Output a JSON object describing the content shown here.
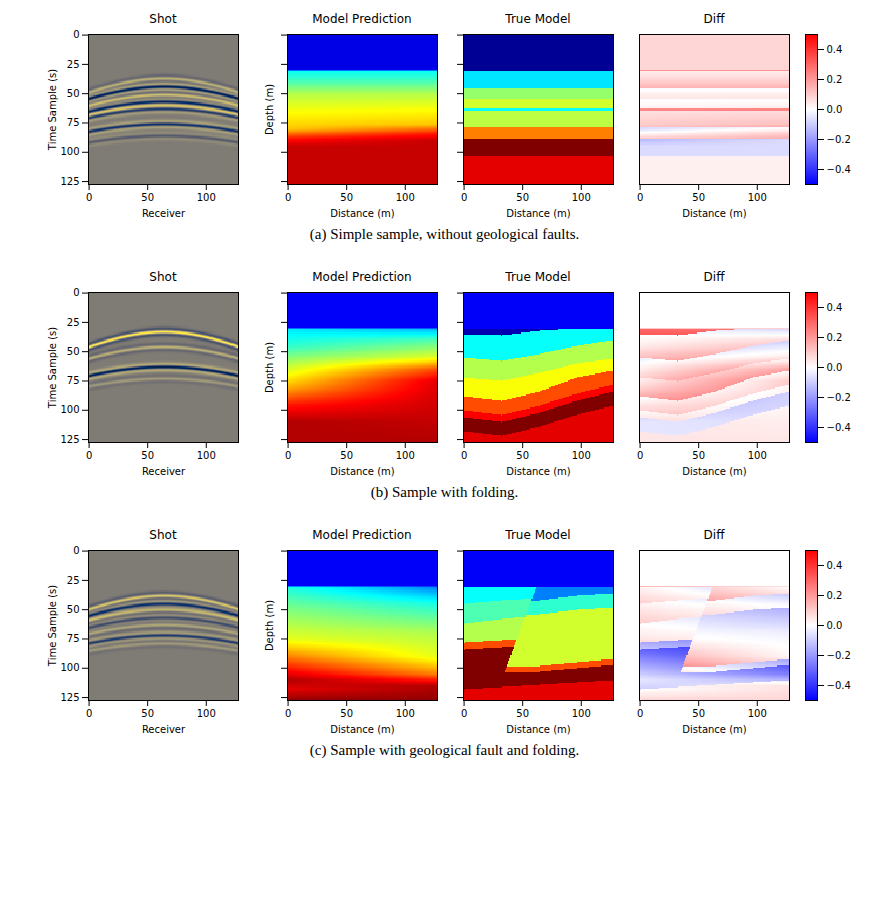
{
  "chart_data": [
    {
      "type": "image_grid",
      "caption": "(a) Simple sample, without geological faults.",
      "panels": [
        {
          "type": "shot",
          "title": "Shot",
          "xlabel": "Receiver",
          "ylabel": "Time Sample (s)",
          "xlim": [
            -0.5,
            127.5
          ],
          "ylim": [
            127.5,
            -0.5
          ],
          "xticks": [
            0,
            50,
            100
          ],
          "yticks": [
            0,
            25,
            50,
            75,
            100,
            125
          ],
          "tick_labels": true,
          "range": [
            -1,
            1
          ],
          "apex": 64,
          "moveout": 0.5,
          "events": [
            {
              "t0": 37,
              "amplitude": 0.5
            },
            {
              "t0": 44,
              "amplitude": -1
            },
            {
              "t0": 51,
              "amplitude": 0.6
            },
            {
              "t0": 57,
              "amplitude": -0.9
            },
            {
              "t0": 63,
              "amplitude": -0.7
            },
            {
              "t0": 76,
              "amplitude": -0.8
            },
            {
              "t0": 86,
              "amplitude": -0.35
            }
          ]
        },
        {
          "type": "model",
          "title": "Model Prediction",
          "xlabel": "Distance (m)",
          "ylabel": "Depth (m)",
          "xlim": [
            -0.5,
            127.5
          ],
          "ylim": [
            127.5,
            -0.5
          ],
          "xticks": [
            0,
            50,
            100
          ],
          "yticks": [
            0,
            25,
            50,
            75,
            100,
            125
          ],
          "tick_labels": "x",
          "range": [
            0,
            1
          ],
          "profiles": [
            {
              "x": 0,
              "depth": [
                0,
                29.5,
                30.5,
                40,
                50,
                65,
                80,
                88,
                95,
                127
              ],
              "value": [
                0.1,
                0.1,
                0.38,
                0.45,
                0.55,
                0.62,
                0.68,
                0.85,
                0.93,
                0.93
              ]
            },
            {
              "x": 127,
              "depth": [
                0,
                29.5,
                30.5,
                40,
                50,
                63,
                76,
                84,
                90,
                127
              ],
              "value": [
                0.1,
                0.1,
                0.38,
                0.45,
                0.55,
                0.62,
                0.68,
                0.85,
                0.93,
                0.93
              ]
            }
          ]
        },
        {
          "type": "model",
          "title": "True Model",
          "xlabel": "Distance (m)",
          "xlim": [
            -0.5,
            127.5
          ],
          "ylim": [
            127.5,
            -0.5
          ],
          "xticks": [
            0,
            50,
            100
          ],
          "yticks": [
            0,
            25,
            50,
            75,
            100,
            125
          ],
          "tick_labels": "x",
          "range": [
            0,
            1
          ],
          "blocks": [
            {
              "x": [
                0,
                127
              ],
              "interfaces": [
                [
                  30,
                  30
                ],
                [
                  45,
                  45
                ],
                [
                  54,
                  54
                ],
                [
                  62,
                  62
                ],
                [
                  64,
                  64
                ],
                [
                  78,
                  78
                ],
                [
                  88,
                  88
                ],
                [
                  103,
                  103
                ]
              ],
              "values": [
                0.02,
                0.35,
                0.52,
                0.58,
                0.38,
                0.56,
                0.75,
                1.0,
                0.9
              ]
            }
          ]
        },
        {
          "type": "diff",
          "title": "Diff",
          "xlabel": "Distance (m)",
          "xlim": [
            -0.5,
            127.5
          ],
          "ylim": [
            127.5,
            -0.5
          ],
          "xticks": [
            0,
            50,
            100
          ],
          "tick_labels": "x",
          "colorbar_range": [
            -0.5,
            0.5
          ],
          "colorbar_ticks": [
            -0.4,
            -0.2,
            {
              "value": 0,
              "label": "0.0"
            },
            0.2,
            0.4
          ]
        }
      ]
    },
    {
      "type": "image_grid",
      "caption": "(b) Sample with folding.",
      "panels": [
        {
          "type": "shot",
          "title": "Shot",
          "xlabel": "Receiver",
          "ylabel": "Time Sample (s)",
          "xlim": [
            -0.5,
            127.5
          ],
          "ylim": [
            127.5,
            -0.5
          ],
          "xticks": [
            0,
            50,
            100
          ],
          "yticks": [
            0,
            25,
            50,
            75,
            100,
            125
          ],
          "tick_labels": true,
          "range": [
            -1,
            1
          ],
          "apex": 64,
          "moveout": 0.5,
          "events": [
            {
              "t0": 33,
              "amplitude": 1
            },
            {
              "t0": 46,
              "amplitude": 0.5
            },
            {
              "t0": 63,
              "amplitude": -1
            },
            {
              "t0": 73,
              "amplitude": 0.3
            }
          ]
        },
        {
          "type": "model",
          "title": "Model Prediction",
          "xlabel": "Distance (m)",
          "ylabel": "Depth (m)",
          "xlim": [
            -0.5,
            127.5
          ],
          "ylim": [
            127.5,
            -0.5
          ],
          "xticks": [
            0,
            50,
            100
          ],
          "yticks": [
            0,
            25,
            50,
            75,
            100,
            125
          ],
          "tick_labels": "x",
          "range": [
            0,
            1
          ],
          "profiles": [
            {
              "x": 0,
              "depth": [
                0,
                29.5,
                30.5,
                45,
                60,
                80,
                95,
                110,
                127
              ],
              "value": [
                0.12,
                0.12,
                0.35,
                0.42,
                0.55,
                0.7,
                0.85,
                0.95,
                0.95
              ]
            },
            {
              "x": 127,
              "depth": [
                0,
                29.5,
                30.5,
                40,
                55,
                65,
                75,
                127
              ],
              "value": [
                0.12,
                0.12,
                0.3,
                0.45,
                0.6,
                0.8,
                0.9,
                0.95
              ]
            }
          ]
        },
        {
          "type": "model",
          "title": "True Model",
          "xlabel": "Distance (m)",
          "xlim": [
            -0.5,
            127.5
          ],
          "ylim": [
            127.5,
            -0.5
          ],
          "xticks": [
            0,
            50,
            100
          ],
          "yticks": [
            0,
            25,
            50,
            75,
            100,
            125
          ],
          "tick_labels": "x",
          "range": [
            0,
            1
          ],
          "blocks": [
            {
              "x": [
                0,
                32,
                64,
                96,
                127
              ],
              "interfaces": [
                [
                  30,
                  30,
                  30,
                  30,
                  30
                ],
                [
                  35,
                  36,
                  32,
                  30,
                  30
                ],
                [
                  55,
                  58,
                  52,
                  45,
                  40
                ],
                [
                  72,
                  75,
                  68,
                  60,
                  56
                ],
                [
                  88,
                  92,
                  84,
                  72,
                  66
                ],
                [
                  100,
                  104,
                  96,
                  86,
                  78
                ],
                [
                  106,
                  110,
                  102,
                  92,
                  84
                ],
                [
                  118,
                  122,
                  114,
                  104,
                  96
                ]
              ],
              "values": [
                0.12,
                0.05,
                0.38,
                0.55,
                0.62,
                0.8,
                0.88,
                1.0,
                0.9
              ]
            }
          ]
        },
        {
          "type": "diff",
          "title": "Diff",
          "xlabel": "Distance (m)",
          "xlim": [
            -0.5,
            127.5
          ],
          "ylim": [
            127.5,
            -0.5
          ],
          "xticks": [
            0,
            50,
            100
          ],
          "tick_labels": "x",
          "colorbar_range": [
            -0.5,
            0.5
          ],
          "colorbar_ticks": [
            -0.4,
            -0.2,
            {
              "value": 0,
              "label": "0.0"
            },
            0.2,
            0.4
          ]
        }
      ]
    },
    {
      "type": "image_grid",
      "caption": "(c) Sample with geological fault and folding.",
      "panels": [
        {
          "type": "shot",
          "title": "Shot",
          "xlabel": "Receiver",
          "ylabel": "Time Sample (s)",
          "xlim": [
            -0.5,
            127.5
          ],
          "ylim": [
            127.5,
            -0.5
          ],
          "xticks": [
            0,
            50,
            100
          ],
          "yticks": [
            0,
            25,
            50,
            75,
            100,
            125
          ],
          "tick_labels": true,
          "range": [
            -1,
            1
          ],
          "apex": 64,
          "moveout": 0.5,
          "events": [
            {
              "t0": 38,
              "amplitude": 0.7
            },
            {
              "t0": 45,
              "amplitude": -0.8
            },
            {
              "t0": 50,
              "amplitude": 0.5
            },
            {
              "t0": 57,
              "amplitude": -0.5
            },
            {
              "t0": 63,
              "amplitude": 0.4
            },
            {
              "t0": 72,
              "amplitude": -0.7
            },
            {
              "t0": 79,
              "amplitude": 0.3
            }
          ]
        },
        {
          "type": "model",
          "title": "Model Prediction",
          "xlabel": "Distance (m)",
          "ylabel": "Depth (m)",
          "xlim": [
            -0.5,
            127.5
          ],
          "ylim": [
            127.5,
            -0.5
          ],
          "xticks": [
            0,
            50,
            100
          ],
          "yticks": [
            0,
            25,
            50,
            75,
            100,
            125
          ],
          "tick_labels": "x",
          "range": [
            0,
            1
          ],
          "profiles": [
            {
              "x": 0,
              "depth": [
                0,
                29.5,
                30.5,
                50,
                75,
                95,
                110,
                118,
                127
              ],
              "value": [
                0.12,
                0.12,
                0.4,
                0.5,
                0.6,
                0.8,
                0.95,
                0.9,
                0.98
              ]
            },
            {
              "x": 127,
              "depth": [
                0,
                29.5,
                30.5,
                45,
                70,
                90,
                105,
                115,
                127
              ],
              "value": [
                0.12,
                0.12,
                0.25,
                0.4,
                0.55,
                0.6,
                0.75,
                0.95,
                0.98
              ]
            }
          ]
        },
        {
          "type": "model",
          "title": "True Model",
          "xlabel": "Distance (m)",
          "xlim": [
            -0.5,
            127.5
          ],
          "ylim": [
            127.5,
            -0.5
          ],
          "xticks": [
            0,
            50,
            100
          ],
          "yticks": [
            0,
            25,
            50,
            75,
            100,
            125
          ],
          "tick_labels": "x",
          "range": [
            0,
            1
          ],
          "fault": {
            "x": [
              62,
              30
            ],
            "depth": [
              30,
              115
            ]
          },
          "blocks": [
            {
              "side": "left",
              "x": [
                0,
                32,
                64,
                96,
                127
              ],
              "interfaces": [
                [
                  30,
                  30,
                  30,
                  30,
                  30
                ],
                [
                  45,
                  42,
                  40,
                  38,
                  36
                ],
                [
                  62,
                  58,
                  55,
                  52,
                  50
                ],
                [
                  78,
                  76,
                  74,
                  72,
                  70
                ],
                [
                  84,
                  82,
                  80,
                  78,
                  76
                ],
                [
                  118,
                  116,
                  114,
                  112,
                  110
                ]
              ],
              "values": [
                0.12,
                0.38,
                0.45,
                0.55,
                0.8,
                1.0,
                0.9
              ]
            },
            {
              "side": "right",
              "x": [
                0,
                32,
                64,
                96,
                127
              ],
              "interfaces": [
                [
                  30,
                  30,
                  30,
                  30,
                  30
                ],
                [
                  45,
                  44,
                  42,
                  38,
                  36
                ],
                [
                  58,
                  56,
                  54,
                  50,
                  48
                ],
                [
                  96,
                  98,
                  98,
                  95,
                  92
                ],
                [
                  101,
                  103,
                  103,
                  100,
                  97
                ],
                [
                  116,
                  116,
                  114,
                  112,
                  110
                ]
              ],
              "values": [
                0.12,
                0.25,
                0.42,
                0.58,
                0.8,
                1.0,
                0.9
              ]
            }
          ]
        },
        {
          "type": "diff",
          "title": "Diff",
          "xlabel": "Distance (m)",
          "xlim": [
            -0.5,
            127.5
          ],
          "ylim": [
            127.5,
            -0.5
          ],
          "xticks": [
            0,
            50,
            100
          ],
          "tick_labels": "x",
          "colorbar_range": [
            -0.5,
            0.5
          ],
          "colorbar_ticks": [
            -0.4,
            -0.2,
            {
              "value": 0,
              "label": "0.0"
            },
            0.2,
            0.4
          ]
        }
      ]
    }
  ]
}
